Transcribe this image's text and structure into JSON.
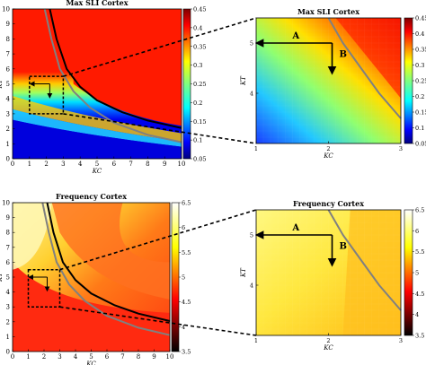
{
  "chart_data": [
    {
      "type": "heatmap",
      "title": "Max SLI Cortex",
      "xlabel": "K_C",
      "ylabel": "K_T",
      "xlim": [
        0,
        10
      ],
      "ylim": [
        0,
        10
      ],
      "x_ticks": [
        "0",
        "1",
        "2",
        "3",
        "4",
        "5",
        "6",
        "7",
        "8",
        "9",
        "10"
      ],
      "y_ticks": [
        "0",
        "1",
        "2",
        "3",
        "4",
        "5",
        "6",
        "7",
        "8",
        "9",
        "10"
      ],
      "colorbar": {
        "range": [
          0.05,
          0.45
        ],
        "ticks": [
          "0.05",
          "0.1",
          "0.15",
          "0.2",
          "0.25",
          "0.3",
          "0.35",
          "0.4",
          "0.45"
        ],
        "colormap": "jet"
      },
      "curves": [
        {
          "color": "#000000",
          "points": [
            [
              2.2,
              10
            ],
            [
              2.6,
              8
            ],
            [
              3.2,
              6
            ],
            [
              4,
              4.8
            ],
            [
              5,
              3.9
            ],
            [
              6.5,
              3.1
            ],
            [
              8,
              2.55
            ],
            [
              10,
              2.05
            ]
          ]
        },
        {
          "color": "#808080",
          "points": [
            [
              1.9,
              10
            ],
            [
              2.3,
              8
            ],
            [
              2.8,
              6
            ],
            [
              3.6,
              4.5
            ],
            [
              4.6,
              3.4
            ],
            [
              6,
              2.4
            ],
            [
              8,
              1.6
            ],
            [
              10,
              1.1
            ]
          ]
        }
      ],
      "highlight_box": {
        "x": [
          1,
          3
        ],
        "y": [
          3,
          5.5
        ]
      }
    },
    {
      "type": "heatmap",
      "title": "Max SLI Cortex",
      "xlabel": "K_C",
      "ylabel": "K_T",
      "xlim": [
        1,
        3
      ],
      "ylim": [
        3,
        5.5
      ],
      "x_ticks": [
        "1",
        "2",
        "3"
      ],
      "y_ticks": [
        "4",
        "5"
      ],
      "colorbar": {
        "range": [
          0.05,
          0.45
        ],
        "ticks": [
          "0.05",
          "0.1",
          "0.15",
          "0.2",
          "0.25",
          "0.3",
          "0.35",
          "0.4",
          "0.45"
        ],
        "colormap": "jet"
      },
      "annotations": [
        "A",
        "B"
      ],
      "curves": [
        {
          "color": "#808080",
          "points": [
            [
              2,
              5.5
            ],
            [
              2.2,
              5
            ],
            [
              2.45,
              4.5
            ],
            [
              2.7,
              4
            ],
            [
              3,
              3.5
            ]
          ]
        }
      ]
    },
    {
      "type": "heatmap",
      "title": "Frequency Cortex",
      "xlabel": "K_C",
      "ylabel": "K_T",
      "xlim": [
        0,
        10
      ],
      "ylim": [
        0,
        10
      ],
      "x_ticks": [
        "0",
        "1",
        "2",
        "3",
        "4",
        "5",
        "6",
        "7",
        "8",
        "9",
        "10"
      ],
      "y_ticks": [
        "0",
        "1",
        "2",
        "3",
        "4",
        "5",
        "6",
        "7",
        "8",
        "9",
        "10"
      ],
      "colorbar": {
        "range": [
          3.5,
          6.5
        ],
        "ticks": [
          "3.5",
          "4",
          "4.5",
          "5",
          "5.5",
          "6",
          "6.5"
        ],
        "colormap": "hot"
      },
      "annotations": [
        "A",
        "B"
      ],
      "curves": [
        {
          "color": "#000000",
          "points": [
            [
              2.2,
              10
            ],
            [
              2.6,
              8
            ],
            [
              3.2,
              6
            ],
            [
              4,
              4.8
            ],
            [
              5,
              3.9
            ],
            [
              6.5,
              3.1
            ],
            [
              8,
              2.55
            ],
            [
              10,
              2.05
            ]
          ]
        },
        {
          "color": "#808080",
          "points": [
            [
              1.9,
              10
            ],
            [
              2.3,
              8
            ],
            [
              2.8,
              6
            ],
            [
              3.6,
              4.5
            ],
            [
              4.6,
              3.4
            ],
            [
              6,
              2.4
            ],
            [
              8,
              1.6
            ],
            [
              10,
              1.1
            ]
          ]
        }
      ],
      "highlight_box": {
        "x": [
          1,
          3
        ],
        "y": [
          3,
          5.5
        ]
      }
    },
    {
      "type": "heatmap",
      "title": "Frequency Cortex",
      "xlabel": "K_C",
      "ylabel": "K_T",
      "xlim": [
        1,
        3
      ],
      "ylim": [
        3,
        5.5
      ],
      "x_ticks": [
        "1",
        "2",
        "3"
      ],
      "y_ticks": [
        "4",
        "5"
      ],
      "colorbar": {
        "range": [
          3.5,
          6.5
        ],
        "ticks": [
          "3.5",
          "4",
          "4.5",
          "5",
          "5.5",
          "6",
          "6.5"
        ],
        "colormap": "hot"
      },
      "annotations": [
        "A",
        "B"
      ],
      "curves": [
        {
          "color": "#808080",
          "points": [
            [
              2,
              5.5
            ],
            [
              2.2,
              5
            ],
            [
              2.45,
              4.5
            ],
            [
              2.7,
              4
            ],
            [
              3,
              3.5
            ]
          ]
        }
      ]
    }
  ]
}
